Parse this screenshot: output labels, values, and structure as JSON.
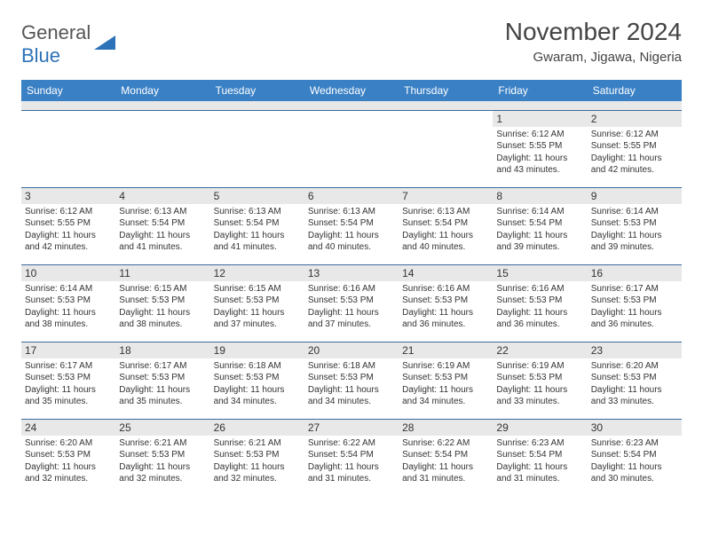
{
  "logo": {
    "text1": "General",
    "text2": "Blue"
  },
  "title": "November 2024",
  "location": "Gwaram, Jigawa, Nigeria",
  "colors": {
    "header_bg": "#3a80c4",
    "header_fg": "#ffffff",
    "daynum_bg": "#e8e8e8",
    "border": "#3a6a9a",
    "text": "#333333",
    "logo_gray": "#555555",
    "logo_blue": "#2d72b8"
  },
  "day_labels": [
    "Sunday",
    "Monday",
    "Tuesday",
    "Wednesday",
    "Thursday",
    "Friday",
    "Saturday"
  ],
  "weeks": [
    [
      {
        "n": "",
        "sr": "",
        "ss": "",
        "dl": ""
      },
      {
        "n": "",
        "sr": "",
        "ss": "",
        "dl": ""
      },
      {
        "n": "",
        "sr": "",
        "ss": "",
        "dl": ""
      },
      {
        "n": "",
        "sr": "",
        "ss": "",
        "dl": ""
      },
      {
        "n": "",
        "sr": "",
        "ss": "",
        "dl": ""
      },
      {
        "n": "1",
        "sr": "Sunrise: 6:12 AM",
        "ss": "Sunset: 5:55 PM",
        "dl": "Daylight: 11 hours and 43 minutes."
      },
      {
        "n": "2",
        "sr": "Sunrise: 6:12 AM",
        "ss": "Sunset: 5:55 PM",
        "dl": "Daylight: 11 hours and 42 minutes."
      }
    ],
    [
      {
        "n": "3",
        "sr": "Sunrise: 6:12 AM",
        "ss": "Sunset: 5:55 PM",
        "dl": "Daylight: 11 hours and 42 minutes."
      },
      {
        "n": "4",
        "sr": "Sunrise: 6:13 AM",
        "ss": "Sunset: 5:54 PM",
        "dl": "Daylight: 11 hours and 41 minutes."
      },
      {
        "n": "5",
        "sr": "Sunrise: 6:13 AM",
        "ss": "Sunset: 5:54 PM",
        "dl": "Daylight: 11 hours and 41 minutes."
      },
      {
        "n": "6",
        "sr": "Sunrise: 6:13 AM",
        "ss": "Sunset: 5:54 PM",
        "dl": "Daylight: 11 hours and 40 minutes."
      },
      {
        "n": "7",
        "sr": "Sunrise: 6:13 AM",
        "ss": "Sunset: 5:54 PM",
        "dl": "Daylight: 11 hours and 40 minutes."
      },
      {
        "n": "8",
        "sr": "Sunrise: 6:14 AM",
        "ss": "Sunset: 5:54 PM",
        "dl": "Daylight: 11 hours and 39 minutes."
      },
      {
        "n": "9",
        "sr": "Sunrise: 6:14 AM",
        "ss": "Sunset: 5:53 PM",
        "dl": "Daylight: 11 hours and 39 minutes."
      }
    ],
    [
      {
        "n": "10",
        "sr": "Sunrise: 6:14 AM",
        "ss": "Sunset: 5:53 PM",
        "dl": "Daylight: 11 hours and 38 minutes."
      },
      {
        "n": "11",
        "sr": "Sunrise: 6:15 AM",
        "ss": "Sunset: 5:53 PM",
        "dl": "Daylight: 11 hours and 38 minutes."
      },
      {
        "n": "12",
        "sr": "Sunrise: 6:15 AM",
        "ss": "Sunset: 5:53 PM",
        "dl": "Daylight: 11 hours and 37 minutes."
      },
      {
        "n": "13",
        "sr": "Sunrise: 6:16 AM",
        "ss": "Sunset: 5:53 PM",
        "dl": "Daylight: 11 hours and 37 minutes."
      },
      {
        "n": "14",
        "sr": "Sunrise: 6:16 AM",
        "ss": "Sunset: 5:53 PM",
        "dl": "Daylight: 11 hours and 36 minutes."
      },
      {
        "n": "15",
        "sr": "Sunrise: 6:16 AM",
        "ss": "Sunset: 5:53 PM",
        "dl": "Daylight: 11 hours and 36 minutes."
      },
      {
        "n": "16",
        "sr": "Sunrise: 6:17 AM",
        "ss": "Sunset: 5:53 PM",
        "dl": "Daylight: 11 hours and 36 minutes."
      }
    ],
    [
      {
        "n": "17",
        "sr": "Sunrise: 6:17 AM",
        "ss": "Sunset: 5:53 PM",
        "dl": "Daylight: 11 hours and 35 minutes."
      },
      {
        "n": "18",
        "sr": "Sunrise: 6:17 AM",
        "ss": "Sunset: 5:53 PM",
        "dl": "Daylight: 11 hours and 35 minutes."
      },
      {
        "n": "19",
        "sr": "Sunrise: 6:18 AM",
        "ss": "Sunset: 5:53 PM",
        "dl": "Daylight: 11 hours and 34 minutes."
      },
      {
        "n": "20",
        "sr": "Sunrise: 6:18 AM",
        "ss": "Sunset: 5:53 PM",
        "dl": "Daylight: 11 hours and 34 minutes."
      },
      {
        "n": "21",
        "sr": "Sunrise: 6:19 AM",
        "ss": "Sunset: 5:53 PM",
        "dl": "Daylight: 11 hours and 34 minutes."
      },
      {
        "n": "22",
        "sr": "Sunrise: 6:19 AM",
        "ss": "Sunset: 5:53 PM",
        "dl": "Daylight: 11 hours and 33 minutes."
      },
      {
        "n": "23",
        "sr": "Sunrise: 6:20 AM",
        "ss": "Sunset: 5:53 PM",
        "dl": "Daylight: 11 hours and 33 minutes."
      }
    ],
    [
      {
        "n": "24",
        "sr": "Sunrise: 6:20 AM",
        "ss": "Sunset: 5:53 PM",
        "dl": "Daylight: 11 hours and 32 minutes."
      },
      {
        "n": "25",
        "sr": "Sunrise: 6:21 AM",
        "ss": "Sunset: 5:53 PM",
        "dl": "Daylight: 11 hours and 32 minutes."
      },
      {
        "n": "26",
        "sr": "Sunrise: 6:21 AM",
        "ss": "Sunset: 5:53 PM",
        "dl": "Daylight: 11 hours and 32 minutes."
      },
      {
        "n": "27",
        "sr": "Sunrise: 6:22 AM",
        "ss": "Sunset: 5:54 PM",
        "dl": "Daylight: 11 hours and 31 minutes."
      },
      {
        "n": "28",
        "sr": "Sunrise: 6:22 AM",
        "ss": "Sunset: 5:54 PM",
        "dl": "Daylight: 11 hours and 31 minutes."
      },
      {
        "n": "29",
        "sr": "Sunrise: 6:23 AM",
        "ss": "Sunset: 5:54 PM",
        "dl": "Daylight: 11 hours and 31 minutes."
      },
      {
        "n": "30",
        "sr": "Sunrise: 6:23 AM",
        "ss": "Sunset: 5:54 PM",
        "dl": "Daylight: 11 hours and 30 minutes."
      }
    ]
  ]
}
